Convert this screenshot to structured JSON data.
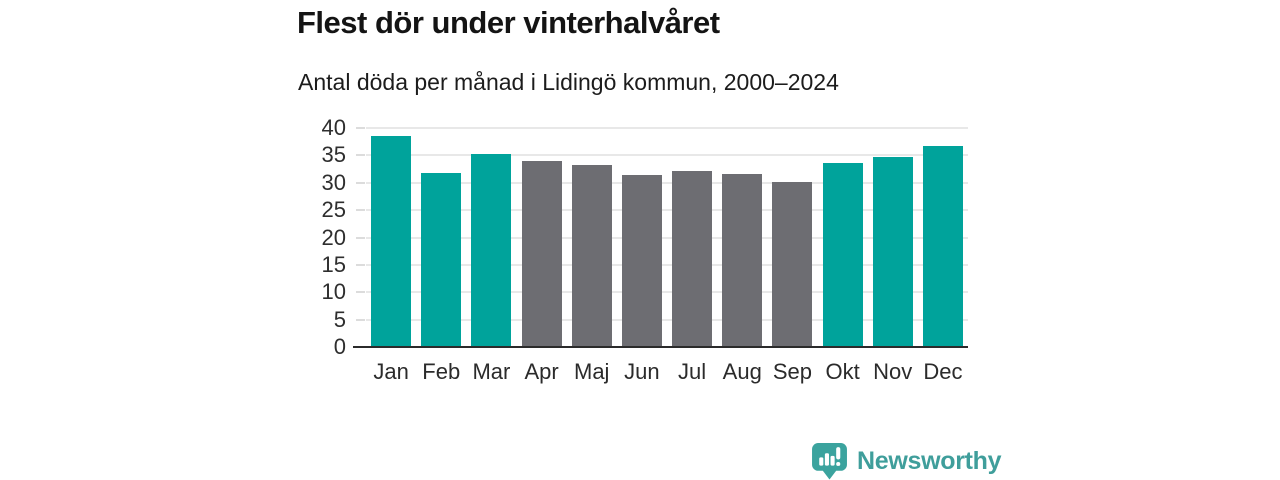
{
  "chart_data": {
    "type": "bar",
    "title": "Flest dör under vinterhalvåret",
    "subtitle": "Antal döda per månad i Lidingö kommun, 2000–2024",
    "categories": [
      "Jan",
      "Feb",
      "Mar",
      "Apr",
      "Maj",
      "Jun",
      "Jul",
      "Aug",
      "Sep",
      "Okt",
      "Nov",
      "Dec"
    ],
    "values": [
      38.6,
      31.7,
      35.2,
      33.9,
      33.3,
      31.4,
      32.2,
      31.6,
      30.1,
      33.7,
      34.7,
      36.7
    ],
    "bar_colors": [
      "#00a39b",
      "#00a39b",
      "#00a39b",
      "#6d6d72",
      "#6d6d72",
      "#6d6d72",
      "#6d6d72",
      "#6d6d72",
      "#6d6d72",
      "#00a39b",
      "#00a39b",
      "#00a39b"
    ],
    "xlabel": "",
    "ylabel": "",
    "ylim": [
      0,
      40
    ],
    "yticks": [
      0,
      5,
      10,
      15,
      20,
      25,
      30,
      35,
      40
    ],
    "grid": true,
    "legend": false
  },
  "colors": {
    "highlight_teal": "#00a39b",
    "neutral_gray": "#6d6d72",
    "brand_teal": "#3f9e9b",
    "gridline": "#e8e8e8",
    "axis_line": "#2b2b2b"
  },
  "branding": {
    "name": "Newsworthy",
    "logo_icon": "bar-chart-speech-bubble-icon"
  }
}
